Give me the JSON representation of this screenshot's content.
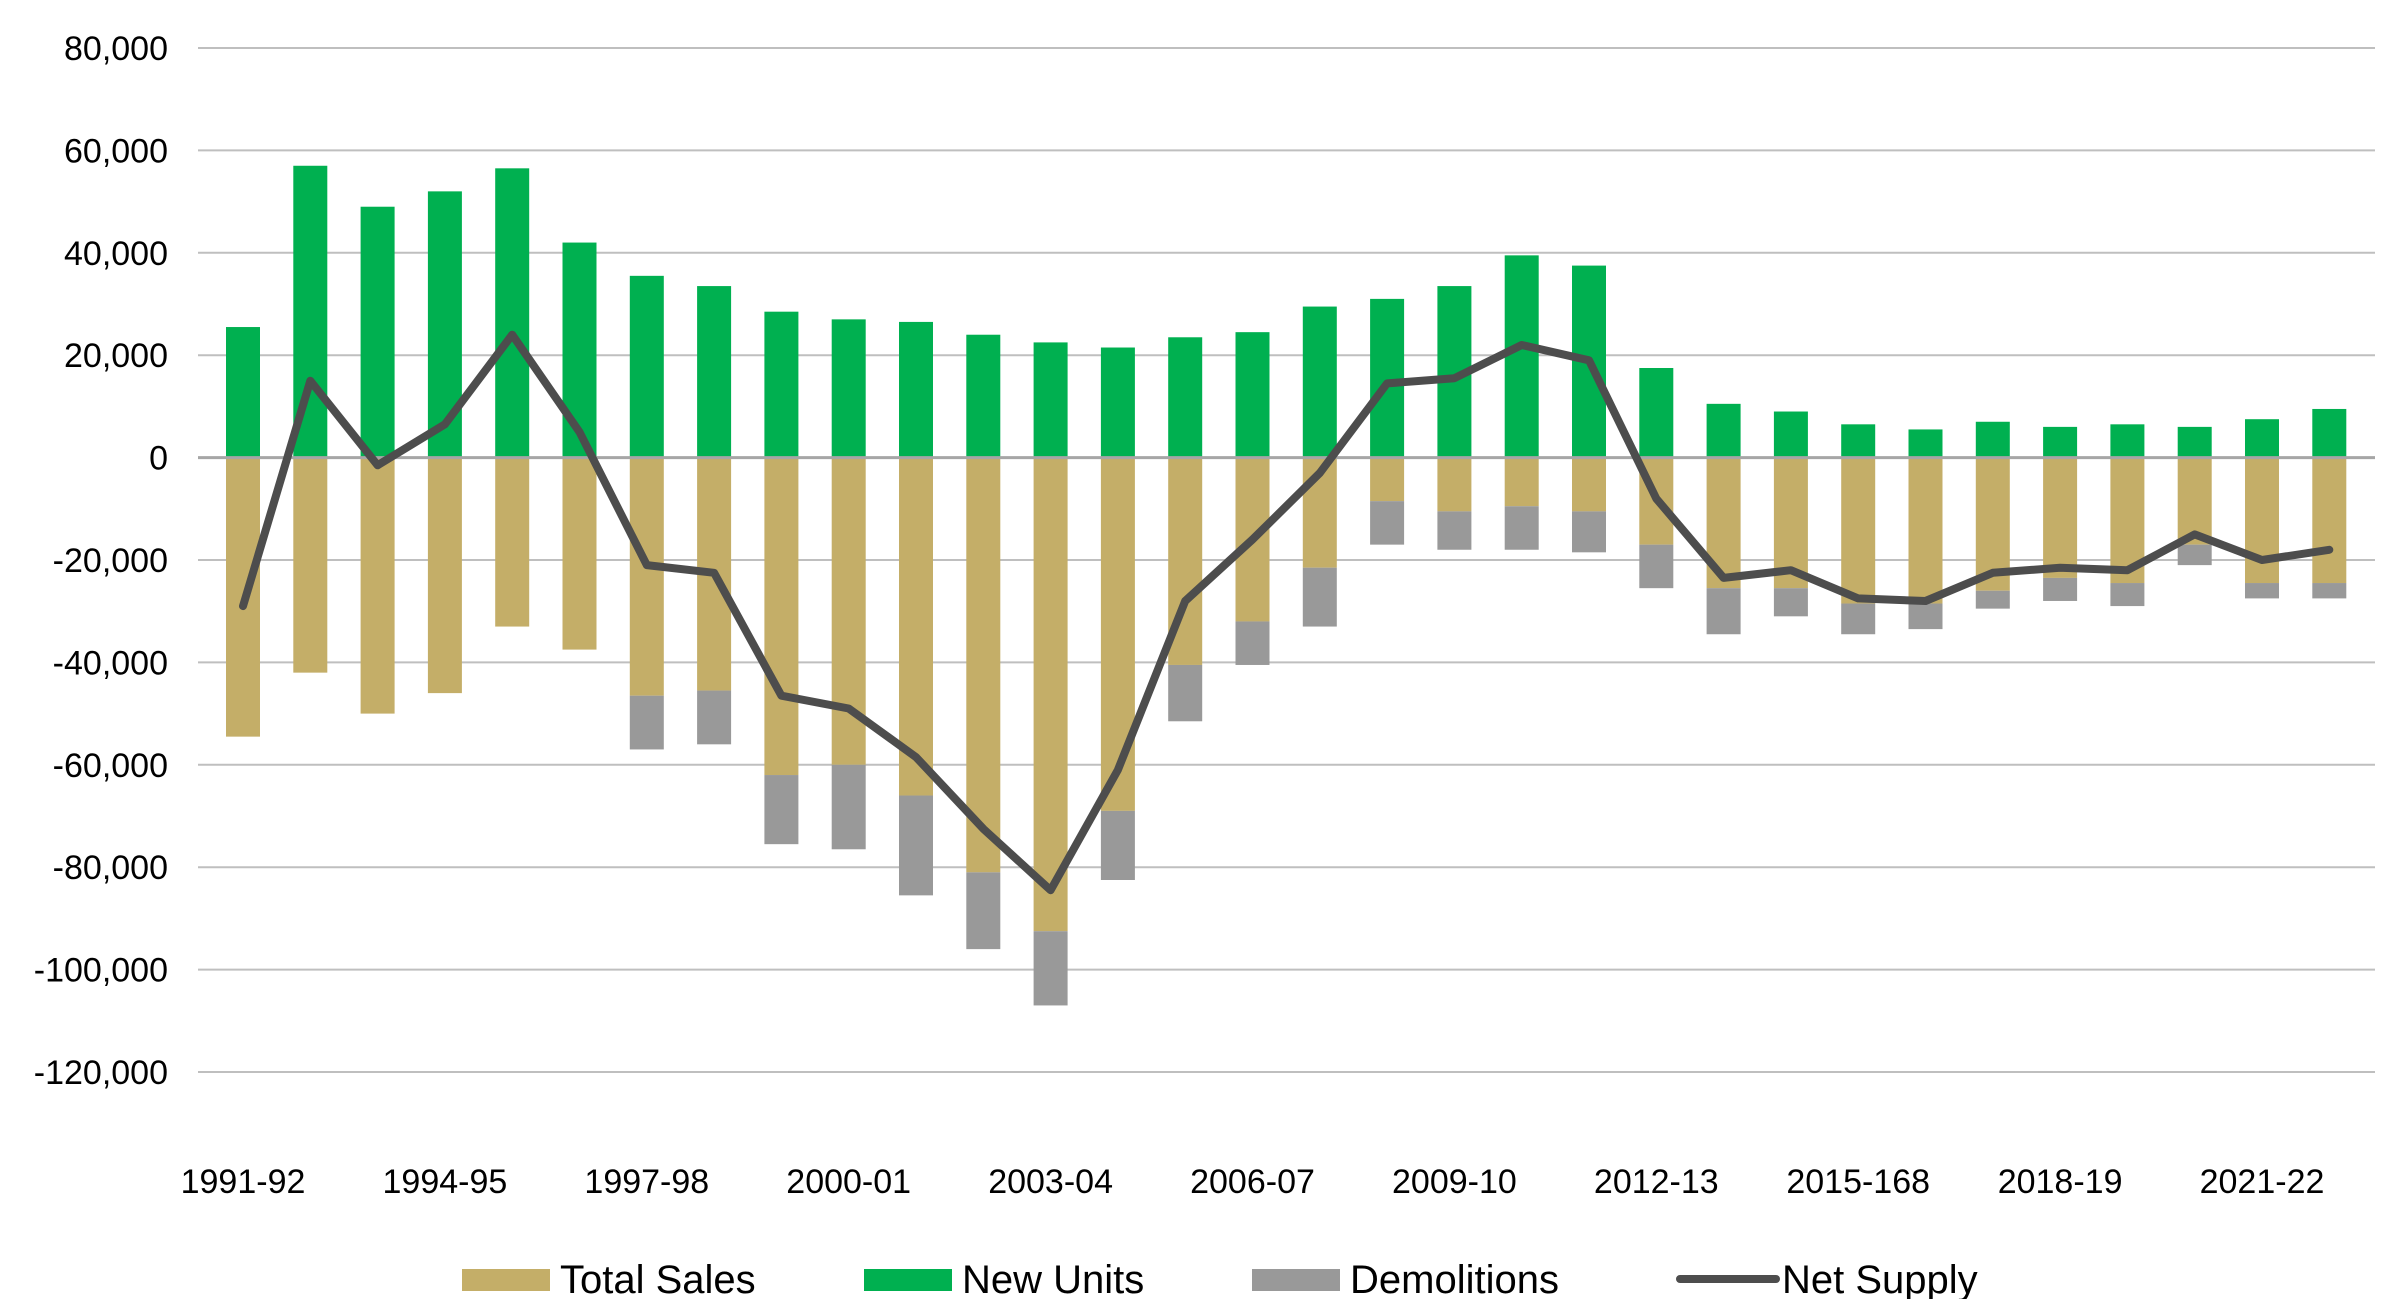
{
  "chart_data": {
    "type": "bar",
    "stacked": true,
    "grid": "horizontal",
    "legend_position": "bottom",
    "ylim": [
      -120000,
      80000
    ],
    "y_ticks": [
      80000,
      60000,
      40000,
      20000,
      0,
      -20000,
      -40000,
      -60000,
      -80000,
      -100000,
      -120000
    ],
    "y_tick_labels": [
      "80,000",
      "60,000",
      "40,000",
      "20,000",
      "0",
      "-20,000",
      "-40,000",
      "-60,000",
      "-80,000",
      "-100,000",
      "-120,000"
    ],
    "categories": [
      "1991-92",
      "1992-93",
      "1993-94",
      "1994-95",
      "1995-96",
      "1996-97",
      "1997-98",
      "1998-99",
      "1999-00",
      "2000-01",
      "2001-02",
      "2002-03",
      "2003-04",
      "2004-05",
      "2005-06",
      "2006-07",
      "2007-08",
      "2008-09",
      "2009-10",
      "2010-11",
      "2011-12",
      "2012-13",
      "2013-14",
      "2014-15",
      "2015-168",
      "2016-17",
      "2017-18",
      "2018-19",
      "2019-20",
      "2020-21",
      "2021-22",
      "2022-23"
    ],
    "x_tick_labels": [
      {
        "index": 0,
        "label": "1991-92"
      },
      {
        "index": 3,
        "label": "1994-95"
      },
      {
        "index": 6,
        "label": "1997-98"
      },
      {
        "index": 9,
        "label": "2000-01"
      },
      {
        "index": 12,
        "label": "2003-04"
      },
      {
        "index": 15,
        "label": "2006-07"
      },
      {
        "index": 18,
        "label": "2009-10"
      },
      {
        "index": 21,
        "label": "2012-13"
      },
      {
        "index": 24,
        "label": "2015-168"
      },
      {
        "index": 27,
        "label": "2018-19"
      },
      {
        "index": 30,
        "label": "2021-22"
      }
    ],
    "series": [
      {
        "name": "Total Sales",
        "kind": "bar",
        "color": "#C4AE68",
        "values": [
          -54500,
          -42000,
          -50000,
          -46000,
          -33000,
          -37500,
          -46500,
          -45500,
          -62000,
          -60000,
          -66000,
          -81000,
          -92500,
          -69000,
          -40500,
          -32000,
          -21500,
          -8500,
          -10500,
          -9500,
          -10500,
          -17000,
          -25500,
          -25500,
          -28500,
          -28500,
          -26000,
          -23500,
          -24500,
          -17000,
          -24500,
          -24500
        ]
      },
      {
        "name": "New Units",
        "kind": "bar",
        "color": "#00B050",
        "values": [
          25500,
          57000,
          49000,
          52000,
          56500,
          42000,
          35500,
          33500,
          28500,
          27000,
          26500,
          24000,
          22500,
          21500,
          23500,
          24500,
          29500,
          31000,
          33500,
          39500,
          37500,
          17500,
          10500,
          9000,
          6500,
          5500,
          7000,
          6000,
          6500,
          6000,
          7500,
          9500
        ]
      },
      {
        "name": "Demolitions",
        "kind": "bar",
        "color": "#999999",
        "values": [
          0,
          0,
          0,
          0,
          0,
          0,
          -10500,
          -10500,
          -13500,
          -16500,
          -19500,
          -15000,
          -14500,
          -13500,
          -11000,
          -8500,
          -11500,
          -8500,
          -7500,
          -8500,
          -8000,
          -8500,
          -9000,
          -5500,
          -6000,
          -5000,
          -3500,
          -4500,
          -4500,
          -4000,
          -3000,
          -3000
        ]
      },
      {
        "name": "Net Supply",
        "kind": "line",
        "color": "#4D4D4D",
        "values": [
          -29000,
          15000,
          -1500,
          6500,
          24000,
          5000,
          -21000,
          -22500,
          -46500,
          -49000,
          -58500,
          -72500,
          -84500,
          -61000,
          -28000,
          -16000,
          -3000,
          14500,
          15500,
          22000,
          19000,
          -8000,
          -23500,
          -22000,
          -27500,
          -28000,
          -22500,
          -21500,
          -22000,
          -15000,
          -20000,
          -18000
        ]
      }
    ]
  }
}
